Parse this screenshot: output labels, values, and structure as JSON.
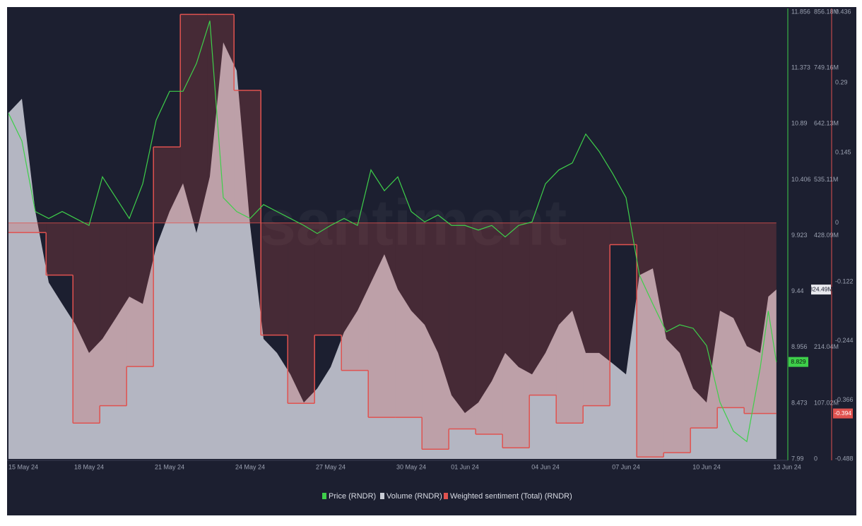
{
  "chart_data": {
    "type": "multi-axis-line",
    "watermark": "santiment",
    "x": [
      0,
      0.5,
      1,
      1.5,
      2,
      2.5,
      3,
      3.5,
      4,
      4.5,
      5,
      5.5,
      6,
      6.5,
      7,
      7.5,
      8,
      8.5,
      9,
      9.5,
      10,
      10.5,
      11,
      11.5,
      12,
      12.5,
      13,
      13.5,
      14,
      14.5,
      15,
      15.5,
      16,
      16.5,
      17,
      17.5,
      18,
      18.5,
      19,
      19.5,
      20,
      20.5,
      21,
      21.5,
      22,
      22.5,
      23,
      23.5,
      24,
      24.5,
      25,
      25.5,
      26,
      26.5,
      27,
      27.5,
      28,
      28.3,
      28.6
    ],
    "xlim": [
      0,
      29
    ],
    "xticks": [
      {
        "value": 0,
        "label": "15 May 24"
      },
      {
        "value": 3,
        "label": "18 May 24"
      },
      {
        "value": 6,
        "label": "21 May 24"
      },
      {
        "value": 9,
        "label": "24 May 24"
      },
      {
        "value": 12,
        "label": "27 May 24"
      },
      {
        "value": 15,
        "label": "30 May 24"
      },
      {
        "value": 17,
        "label": "01 Jun 24"
      },
      {
        "value": 20,
        "label": "04 Jun 24"
      },
      {
        "value": 23,
        "label": "07 Jun 24"
      },
      {
        "value": 26,
        "label": "10 Jun 24"
      },
      {
        "value": 29,
        "label": "13 Jun 24"
      }
    ],
    "ylim": [
      7.99,
      11.856
    ],
    "yticks": [
      7.99,
      8.473,
      8.956,
      9.44,
      9.923,
      10.406,
      10.89,
      11.373,
      11.856
    ],
    "y2lim": [
      0,
      856.18
    ],
    "y2ticks": [
      0,
      {
        "value": 107.02,
        "label": "107.02M"
      },
      {
        "value": 214.04,
        "label": "214.04M"
      },
      {
        "value": 428.09,
        "label": "428.09M"
      },
      {
        "value": 535.11,
        "label": "535.11M"
      },
      {
        "value": 642.13,
        "label": "642.13M"
      },
      {
        "value": 749.16,
        "label": "749.16M"
      },
      {
        "value": 856.18,
        "label": "856.18M"
      }
    ],
    "y3lim": [
      -0.488,
      0.436
    ],
    "y3ticks": [
      -0.488,
      -0.366,
      -0.244,
      -0.122,
      0,
      0.145,
      0.29,
      0.436
    ],
    "series": [
      {
        "name": "Price (RNDR)",
        "color": "#3ecf4a",
        "axis": "y",
        "last_label": "8.829",
        "values": [
          10.98,
          10.74,
          10.13,
          10.07,
          10.13,
          10.07,
          10.01,
          10.43,
          10.25,
          10.07,
          10.37,
          10.92,
          11.17,
          11.17,
          11.41,
          11.78,
          10.25,
          10.13,
          10.07,
          10.19,
          10.13,
          10.07,
          10.01,
          9.94,
          10.01,
          10.07,
          10.01,
          10.49,
          10.31,
          10.43,
          10.13,
          10.04,
          10.1,
          10.01,
          10.01,
          9.97,
          10.01,
          9.91,
          10.01,
          10.04,
          10.37,
          10.49,
          10.55,
          10.8,
          10.65,
          10.46,
          10.25,
          9.58,
          9.33,
          9.09,
          9.15,
          9.12,
          8.97,
          8.48,
          8.23,
          8.14,
          8.78,
          9.27,
          8.829
        ]
      },
      {
        "name": "Volume (RNDR)",
        "color": "#c9ccd6",
        "axis": "y2",
        "last_label": "324.49M",
        "values": [
          663,
          690,
          474,
          338,
          297,
          257,
          203,
          230,
          270,
          311,
          297,
          406,
          474,
          528,
          433,
          541,
          798,
          744,
          447,
          230,
          203,
          162,
          108,
          135,
          176,
          243,
          284,
          338,
          392,
          325,
          284,
          257,
          203,
          122,
          88,
          108,
          149,
          203,
          176,
          162,
          203,
          257,
          284,
          203,
          203,
          183,
          162,
          352,
          365,
          230,
          203,
          135,
          108,
          284,
          270,
          216,
          203,
          311,
          324.49
        ]
      },
      {
        "name": "Weighted sentiment (Total) (RNDR)",
        "color": "#e0524f",
        "axis": "y3",
        "last_label": "-0.394",
        "x": [
          0,
          1.4,
          2.4,
          3.4,
          4.4,
          5.4,
          6.4,
          7.4,
          8.4,
          9.4,
          10.4,
          11.4,
          12.4,
          13.4,
          14.4,
          15.4,
          16.4,
          17.4,
          18.4,
          19.4,
          20.4,
          21.4,
          22.4,
          23.4,
          24.4,
          25.4,
          26.4,
          27.4
        ],
        "values": [
          -0.02,
          -0.108,
          -0.414,
          -0.378,
          -0.297,
          0.157,
          0.431,
          0.431,
          0.274,
          -0.232,
          -0.373,
          -0.232,
          -0.305,
          -0.402,
          -0.402,
          -0.468,
          -0.426,
          -0.437,
          -0.465,
          -0.356,
          -0.414,
          -0.378,
          -0.045,
          -0.484,
          -0.475,
          -0.424,
          -0.382,
          -0.394
        ]
      }
    ]
  }
}
